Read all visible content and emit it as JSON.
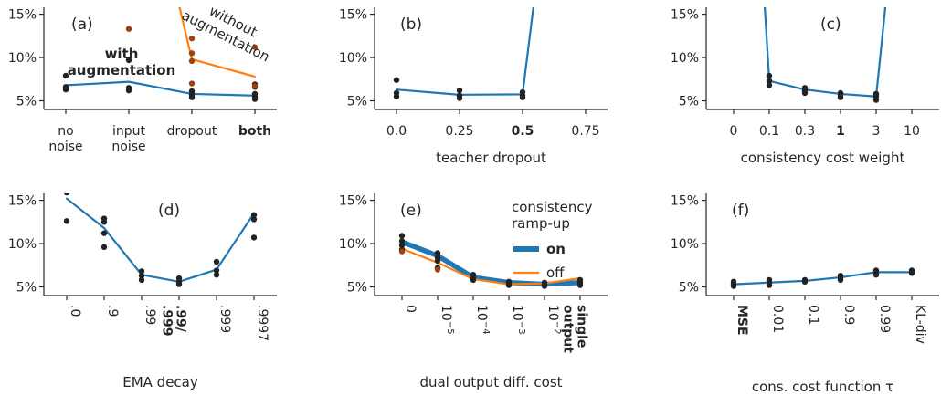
{
  "chart_data": [
    {
      "id": "a",
      "type": "line",
      "tag": "(a)",
      "xlabel": "",
      "ylabel": "",
      "ylim": [
        4,
        15.8
      ],
      "yticks": [
        5,
        10,
        15
      ],
      "ytick_labels": [
        "5%",
        "10%",
        "15%"
      ],
      "categories": [
        {
          "lines": [
            "no",
            "noise"
          ],
          "bold": false
        },
        {
          "lines": [
            "input",
            "noise"
          ],
          "bold": false
        },
        {
          "lines": [
            "dropout"
          ],
          "bold": false
        },
        {
          "lines": [
            "both"
          ],
          "bold": true
        }
      ],
      "series": [
        {
          "color": "#1f77b4",
          "width": 2.2,
          "x": [
            0,
            1,
            2,
            3
          ],
          "y": [
            6.8,
            7.2,
            5.8,
            5.6
          ]
        },
        {
          "color": "#ff7f0e",
          "width": 2.2,
          "x": [
            1.75,
            2,
            3
          ],
          "y": [
            17.5,
            9.8,
            7.8
          ]
        }
      ],
      "points": [
        {
          "color": "#222222",
          "x": [
            0,
            0,
            0,
            1,
            1,
            1,
            2,
            2,
            2,
            3,
            3,
            3,
            3,
            3
          ],
          "y": [
            7.9,
            6.6,
            6.3,
            9.7,
            6.5,
            6.2,
            6.1,
            5.7,
            5.4,
            6.9,
            6.6,
            5.8,
            5.5,
            5.2
          ]
        },
        {
          "color": "#a0400f",
          "x": [
            1,
            2,
            2,
            2,
            2,
            3,
            3
          ],
          "y": [
            13.3,
            12.2,
            10.5,
            9.6,
            7.0,
            11.2,
            6.7
          ]
        }
      ],
      "annotations": [
        {
          "lines": [
            "with",
            "augmentation"
          ],
          "bold": true,
          "rotate": 0
        },
        {
          "lines": [
            "without",
            "augmentation"
          ],
          "bold": false,
          "rotate": 27
        }
      ]
    },
    {
      "id": "b",
      "type": "line",
      "tag": "(b)",
      "xlabel": "teacher dropout",
      "ylabel": "",
      "ylim": [
        4,
        15.8
      ],
      "yticks": [
        5,
        10,
        15
      ],
      "ytick_labels": [
        "5%",
        "10%",
        "15%"
      ],
      "categories": [
        {
          "lines": [
            "0.0"
          ],
          "bold": false
        },
        {
          "lines": [
            "0.25"
          ],
          "bold": false
        },
        {
          "lines": [
            "0.5"
          ],
          "bold": true
        },
        {
          "lines": [
            "0.75"
          ],
          "bold": false
        }
      ],
      "series": [
        {
          "color": "#1f77b4",
          "width": 2.2,
          "x": [
            0,
            1,
            2,
            2.2
          ],
          "y": [
            6.3,
            5.7,
            5.75,
            17.5
          ]
        }
      ],
      "points": [
        {
          "color": "#222222",
          "x": [
            0,
            0,
            0,
            1,
            1,
            1,
            2,
            2,
            2
          ],
          "y": [
            7.4,
            5.9,
            5.5,
            6.2,
            5.6,
            5.3,
            6.0,
            5.6,
            5.4
          ]
        }
      ]
    },
    {
      "id": "c",
      "type": "line",
      "tag": "(c)",
      "xlabel": "consistency cost weight",
      "ylabel": "",
      "ylim": [
        4,
        15.8
      ],
      "yticks": [
        5,
        10,
        15
      ],
      "ytick_labels": [
        "5%",
        "10%",
        "15%"
      ],
      "categories": [
        {
          "lines": [
            "0"
          ],
          "bold": false
        },
        {
          "lines": [
            "0.1"
          ],
          "bold": false
        },
        {
          "lines": [
            "0.3"
          ],
          "bold": false
        },
        {
          "lines": [
            "1"
          ],
          "bold": true
        },
        {
          "lines": [
            "3"
          ],
          "bold": false
        },
        {
          "lines": [
            "10"
          ],
          "bold": false
        }
      ],
      "series": [
        {
          "color": "#1f77b4",
          "width": 2.2,
          "x": [
            0.85,
            1,
            2,
            3,
            4,
            4.3
          ],
          "y": [
            17.5,
            7.3,
            6.3,
            5.8,
            5.5,
            17.5
          ]
        }
      ],
      "points": [
        {
          "color": "#222222",
          "x": [
            1,
            1,
            1,
            2,
            2,
            2,
            3,
            3,
            3,
            4,
            4,
            4
          ],
          "y": [
            7.9,
            7.3,
            6.8,
            6.5,
            6.2,
            5.9,
            5.9,
            5.6,
            5.4,
            5.8,
            5.5,
            5.1
          ]
        }
      ]
    },
    {
      "id": "d",
      "type": "line",
      "tag": "(d)",
      "xlabel": "EMA decay",
      "ylabel": "",
      "ylim": [
        4,
        15.8
      ],
      "yticks": [
        5,
        10,
        15
      ],
      "ytick_labels": [
        "5%",
        "10%",
        "15%"
      ],
      "tick_rotate": 90,
      "categories": [
        {
          "lines": [
            ".0"
          ],
          "bold": false
        },
        {
          "lines": [
            ".9"
          ],
          "bold": false
        },
        {
          "lines": [
            ".99"
          ],
          "bold": false
        },
        {
          "lines": [
            ".99/",
            ".999"
          ],
          "bold": true
        },
        {
          "lines": [
            ".999"
          ],
          "bold": false
        },
        {
          "lines": [
            ".9997"
          ],
          "bold": false
        }
      ],
      "series": [
        {
          "color": "#1f77b4",
          "width": 2.2,
          "x": [
            0,
            1,
            2,
            3,
            4,
            5
          ],
          "y": [
            15.2,
            11.8,
            6.4,
            5.6,
            7.0,
            13.5
          ]
        }
      ],
      "points": [
        {
          "color": "#222222",
          "x": [
            0,
            0,
            1,
            1,
            1,
            1,
            2,
            2,
            2,
            3,
            3,
            3,
            4,
            4,
            4,
            5,
            5,
            5
          ],
          "y": [
            15.9,
            12.6,
            12.9,
            12.5,
            11.2,
            9.6,
            6.8,
            6.3,
            5.8,
            6.0,
            5.6,
            5.3,
            7.9,
            6.9,
            6.4,
            13.3,
            12.8,
            10.7
          ]
        }
      ]
    },
    {
      "id": "e",
      "type": "line",
      "tag": "(e)",
      "xlabel": "dual output diff. cost",
      "ylabel": "",
      "ylim": [
        4,
        15.8
      ],
      "yticks": [
        5,
        10,
        15
      ],
      "ytick_labels": [
        "5%",
        "10%",
        "15%"
      ],
      "tick_rotate": 90,
      "categories": [
        {
          "lines": [
            "0"
          ],
          "bold": false,
          "exp": ""
        },
        {
          "lines": [
            "10"
          ],
          "bold": false,
          "exp": "−5"
        },
        {
          "lines": [
            "10"
          ],
          "bold": false,
          "exp": "−4"
        },
        {
          "lines": [
            "10"
          ],
          "bold": false,
          "exp": "−3"
        },
        {
          "lines": [
            "10"
          ],
          "bold": false,
          "exp": "−2"
        },
        {
          "lines": [
            "single",
            "output"
          ],
          "bold": true,
          "exp": ""
        }
      ],
      "legend": {
        "title_lines": [
          "consistency",
          "ramp-up"
        ],
        "entries": [
          {
            "label": "on",
            "bold": true,
            "color": "#1f77b4",
            "width": 6
          },
          {
            "label": "off",
            "bold": false,
            "color": "#ff7f0e",
            "width": 2.2
          }
        ]
      },
      "series": [
        {
          "name": "on",
          "color": "#1f77b4",
          "width": 5.5,
          "x": [
            0,
            1,
            2,
            3,
            4,
            5
          ],
          "y": [
            10.2,
            8.6,
            6.1,
            5.5,
            5.3,
            5.5
          ]
        },
        {
          "name": "off",
          "color": "#ff7f0e",
          "width": 2.2,
          "x": [
            0,
            1,
            2,
            3,
            4,
            5
          ],
          "y": [
            9.4,
            7.8,
            5.9,
            5.3,
            5.4,
            6.0
          ]
        }
      ],
      "points": [
        {
          "color": "#222222",
          "x": [
            0,
            0,
            0,
            0,
            1,
            1,
            1,
            1,
            2,
            2,
            2,
            3,
            3,
            3,
            4,
            4,
            4,
            5,
            5,
            5
          ],
          "y": [
            10.9,
            10.3,
            9.8,
            9.3,
            8.9,
            8.4,
            8.0,
            7.2,
            6.4,
            6.0,
            5.8,
            5.6,
            5.4,
            5.2,
            5.5,
            5.3,
            5.1,
            5.8,
            5.5,
            5.2
          ]
        },
        {
          "color": "#a0400f",
          "x": [
            0,
            1
          ],
          "y": [
            9.1,
            7.0
          ]
        }
      ]
    },
    {
      "id": "f",
      "type": "line",
      "tag": "(f)",
      "xlabel": "cons. cost function τ",
      "ylabel": "",
      "ylim": [
        4,
        15.8
      ],
      "yticks": [
        5,
        10,
        15
      ],
      "ytick_labels": [
        "5%",
        "10%",
        "15%"
      ],
      "tick_rotate": 90,
      "categories": [
        {
          "lines": [
            "MSE"
          ],
          "bold": true
        },
        {
          "lines": [
            "0.01"
          ],
          "bold": false
        },
        {
          "lines": [
            "0.1"
          ],
          "bold": false
        },
        {
          "lines": [
            "0.9"
          ],
          "bold": false
        },
        {
          "lines": [
            "0.99"
          ],
          "bold": false
        },
        {
          "lines": [
            "KL-div"
          ],
          "bold": false
        }
      ],
      "series": [
        {
          "color": "#1f77b4",
          "width": 2.2,
          "x": [
            0,
            1,
            2,
            3,
            4,
            5
          ],
          "y": [
            5.3,
            5.5,
            5.7,
            6.1,
            6.7,
            6.7
          ]
        }
      ],
      "points": [
        {
          "color": "#222222",
          "x": [
            0,
            0,
            0,
            1,
            1,
            1,
            2,
            2,
            3,
            3,
            3,
            4,
            4,
            4,
            5,
            5
          ],
          "y": [
            5.6,
            5.3,
            5.1,
            5.8,
            5.5,
            5.2,
            5.8,
            5.6,
            6.3,
            6.0,
            5.8,
            6.9,
            6.7,
            6.4,
            6.9,
            6.6
          ]
        }
      ]
    }
  ]
}
